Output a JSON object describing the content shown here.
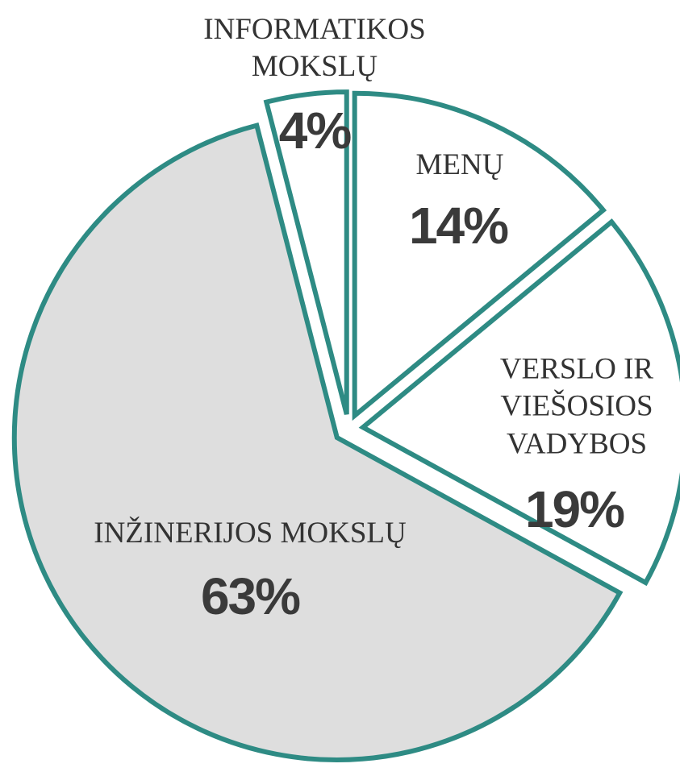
{
  "chart_data": {
    "type": "pie",
    "categories": [
      "MENŲ",
      "VERSLO IR VIEŠOSIOS VADYBOS",
      "INŽINERIJOS MOKSLŲ",
      "INFORMATIKOS MOKSLŲ"
    ],
    "values": [
      14,
      19,
      63,
      4
    ],
    "value_labels": [
      "14%",
      "19%",
      "63%",
      "4%"
    ],
    "colors": [
      "#ffffff",
      "#ffffff",
      "#dedede",
      "#ffffff"
    ],
    "stroke": "#2e8b84"
  }
}
